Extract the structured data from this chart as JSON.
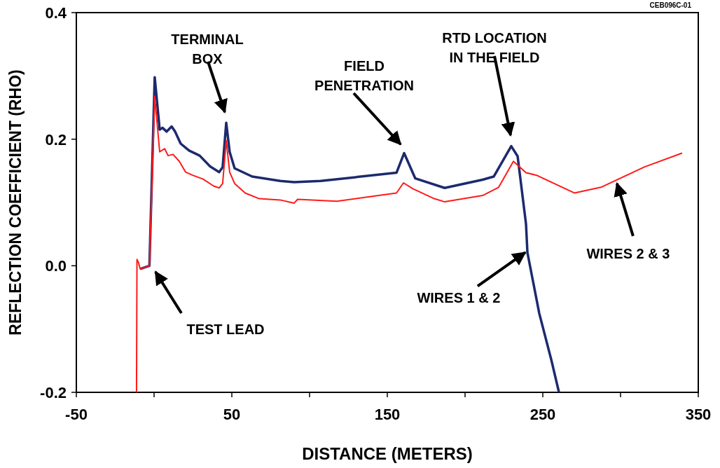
{
  "chart_data": {
    "type": "line",
    "xlabel": "DISTANCE (METERS)",
    "ylabel": "REFLECTION COEFFICIENT (RHO)",
    "xlim": [
      -50,
      350
    ],
    "xticks": [
      -50,
      {
        "value": 0,
        "label": null
      },
      50,
      {
        "value": 100,
        "label": null
      },
      150,
      {
        "value": 200,
        "label": null
      },
      250,
      {
        "value": 300,
        "label": null
      },
      350
    ],
    "ylim": [
      -0.2,
      0.4
    ],
    "yticks": [
      -0.2,
      {
        "value": 0,
        "label": "0.0"
      },
      0.2,
      0.4
    ],
    "grid": false,
    "marker": "none",
    "line_style": "solid",
    "series": [
      {
        "color": "#1c2a6e",
        "x": [
          -9,
          -3,
          0.4,
          3.6,
          5.4,
          8.1,
          11.3,
          13.5,
          17.1,
          22.5,
          29.3,
          36,
          41.9,
          44.1,
          46.4,
          48.6,
          51.8,
          63.1,
          81.1,
          90.1,
          107.2,
          155.9,
          160.8,
          168,
          186.9,
          211.3,
          218.5,
          229.7,
          233.8,
          239.2,
          240.1,
          247.7,
          255.4,
          260.4
        ],
        "values": [
          -0.005,
          0,
          0.298,
          0.215,
          0.218,
          0.212,
          0.22,
          0.212,
          0.193,
          0.182,
          0.174,
          0.157,
          0.148,
          0.156,
          0.226,
          0.18,
          0.154,
          0.141,
          0.134,
          0.132,
          0.134,
          0.147,
          0.178,
          0.138,
          0.123,
          0.136,
          0.141,
          0.189,
          0.173,
          0.066,
          0.021,
          -0.075,
          -0.148,
          -0.2
        ]
      },
      {
        "color": "#ff1a1a",
        "x": [
          -11.3,
          -11,
          -10,
          -9,
          -3,
          0.4,
          3.6,
          6.8,
          9,
          12.2,
          16.2,
          20.3,
          24.8,
          31.5,
          38.3,
          41.9,
          44.1,
          46.4,
          48.6,
          51.8,
          58.6,
          67.6,
          81.1,
          90.1,
          92.3,
          117.6,
          155.9,
          160.4,
          166.2,
          180.2,
          186.9,
          211.3,
          221.6,
          231.1,
          239.2,
          246,
          270.3,
          287.4,
          315.3,
          339.6
        ],
        "values": [
          -0.2,
          0.01,
          0.005,
          -0.005,
          0,
          0.268,
          0.18,
          0.185,
          0.174,
          0.176,
          0.165,
          0.148,
          0.143,
          0.137,
          0.126,
          0.123,
          0.13,
          0.198,
          0.148,
          0.13,
          0.115,
          0.106,
          0.104,
          0.099,
          0.105,
          0.102,
          0.115,
          0.131,
          0.122,
          0.106,
          0.101,
          0.111,
          0.124,
          0.165,
          0.147,
          0.143,
          0.115,
          0.124,
          0.156,
          0.178
        ]
      }
    ],
    "annotations": [
      "TERMINAL\nBOX",
      "FIELD\nPENETRATION",
      "RTD LOCATION\nIN THE FIELD",
      "TEST LEAD",
      {
        "text": "WIRES 1 & 2",
        "x": 238.7,
        "y": 0.021
      },
      {
        "text": "WIRES 2 & 3",
        "x": 297.7,
        "y": 0.13
      },
      "CEB096C-01"
    ]
  }
}
